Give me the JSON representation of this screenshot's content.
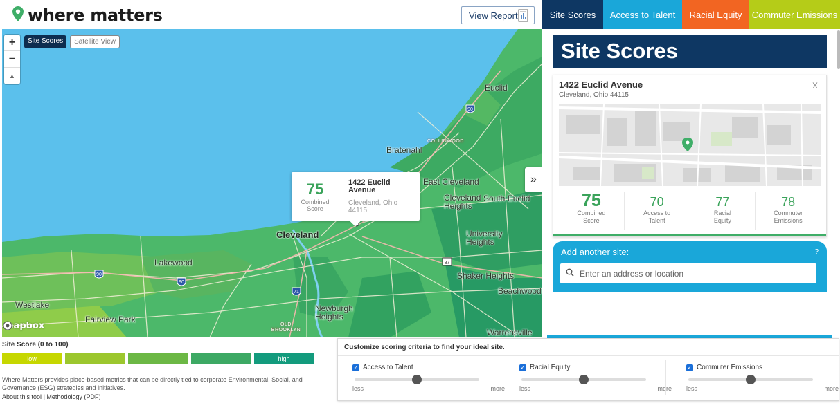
{
  "brand": {
    "name": "where matters"
  },
  "header": {
    "view_report": "View Report"
  },
  "tabs": [
    {
      "label": "Site Scores",
      "color": "#0e3763"
    },
    {
      "label": "Access to Talent",
      "color": "#1aa7d9"
    },
    {
      "label": "Racial Equity",
      "color": "#f26522"
    },
    {
      "label": "Commuter Emissions",
      "color": "#b5cc18"
    }
  ],
  "map": {
    "view_site_scores": "Site Scores",
    "view_satellite": "Satellite View",
    "zoom_in": "+",
    "zoom_out": "−",
    "compass": "▲",
    "collapse": "»",
    "attribution": "mapbox",
    "labels": {
      "euclid": "Euclid",
      "bratenahl": "Bratenahl",
      "collinwood": "COLLINWOOD",
      "east_cleveland": "East Cleveland",
      "cleveland_heights": "Cleveland Heights",
      "south_euclid": "South Euclid",
      "cleveland": "Cleveland",
      "university_heights": "University Heights",
      "lakewood": "Lakewood",
      "shaker_heights": "Shaker Heights",
      "beachwood": "Beachwood",
      "westlake": "Westlake",
      "fairview_park": "Fairview Park",
      "newburgh_heights": "Newburgh Heights",
      "old_brooklyn": "OLD BROOKLYN",
      "warrensville": "Warrensville"
    },
    "highways": {
      "i90_a": "90",
      "i90_b": "90",
      "i90_c": "90",
      "i71": "71",
      "r87": "87"
    },
    "popup": {
      "score": "75",
      "score_label": "Combined Score",
      "address": "1422 Euclid Avenue",
      "city": "Cleveland, Ohio 44115"
    }
  },
  "panel": {
    "title": "Site Scores",
    "card": {
      "address": "1422 Euclid Avenue",
      "city": "Cleveland, Ohio 44115",
      "close": "X",
      "scores": [
        {
          "value": "75",
          "label": "Combined Score"
        },
        {
          "value": "70",
          "label": "Access to Talent"
        },
        {
          "value": "77",
          "label": "Racial Equity"
        },
        {
          "value": "78",
          "label": "Commuter Emissions"
        }
      ]
    },
    "add_site": {
      "title": "Add another site:",
      "help": "?",
      "placeholder": "Enter an address or location"
    }
  },
  "legend": {
    "title": "Site Score (0 to 100)",
    "low": "low",
    "high": "high",
    "colors": [
      "#c6d700",
      "#9cc72e",
      "#6cb845",
      "#3da964",
      "#139b7d"
    ],
    "about": "Where Matters provides place-based metrics that can be directly tied to corporate Environmental, Social, and Governance (ESG) strategies and initiatives.",
    "about_link": "About this tool",
    "separator": "|",
    "methodology_link": "Methodology (PDF)"
  },
  "criteria": {
    "title": "Customize scoring criteria to find your ideal site.",
    "less": "less",
    "more": "more",
    "items": [
      {
        "label": "Access to Talent",
        "checked": true,
        "value": 0.5
      },
      {
        "label": "Racial Equity",
        "checked": true,
        "value": 0.5
      },
      {
        "label": "Commuter Emissions",
        "checked": true,
        "value": 0.5
      }
    ]
  }
}
